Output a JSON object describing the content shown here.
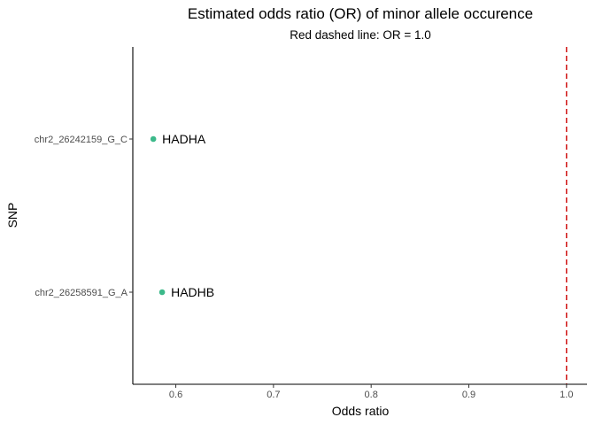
{
  "chart_data": {
    "type": "scatter",
    "title": "Estimated odds ratio (OR) of minor allele occurence",
    "subtitle": "Red dashed line: OR = 1.0",
    "xlabel": "Odds ratio",
    "ylabel": "SNP",
    "xlim": [
      0.556,
      1.021
    ],
    "x_ticks": [
      0.6,
      0.7,
      0.8,
      0.9,
      1.0
    ],
    "x_tick_labels": [
      "0.6",
      "0.7",
      "0.8",
      "0.9",
      "1.0"
    ],
    "categories": [
      "chr2_26242159_G_C",
      "chr2_26258591_G_A"
    ],
    "points": [
      {
        "snp": "chr2_26242159_G_C",
        "x": 0.577,
        "label": "HADHA"
      },
      {
        "snp": "chr2_26258591_G_A",
        "x": 0.586,
        "label": "HADHB"
      }
    ],
    "reference_line": {
      "x": 1.0,
      "style": "dashed",
      "color": "#cc0000"
    },
    "point_color": "#3cb98a",
    "grid": false
  }
}
